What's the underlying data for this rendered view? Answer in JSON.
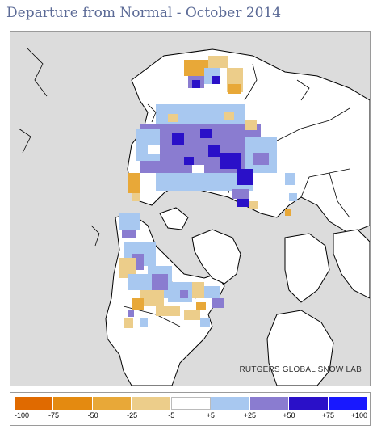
{
  "header": {
    "title": "Departure from Normal - October 2014"
  },
  "map": {
    "credit": "RUTGERS GLOBAL SNOW LAB",
    "colors": {
      "background": "#dcdcdc",
      "land": "#ffffff",
      "coast": "#000000"
    }
  },
  "legend": {
    "colors": [
      "#e06a00",
      "#e48a10",
      "#e8a838",
      "#eccd8a",
      "#ffffff",
      "#a8c8f0",
      "#8a7cd0",
      "#2a10c8",
      "#1818ff"
    ],
    "labels": [
      "-100",
      "-75",
      "-50",
      "-25",
      "-5",
      "+5",
      "+25",
      "+50",
      "+75",
      "+100"
    ]
  }
}
